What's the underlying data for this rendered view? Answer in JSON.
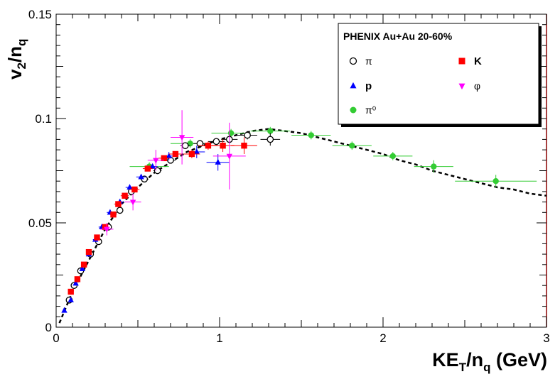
{
  "chart_data": {
    "type": "scatter",
    "title": "",
    "xlabel": {
      "main": "KE",
      "sub1": "T",
      "mid": "/n",
      "sub2": "q",
      "tail": " (GeV)"
    },
    "ylabel": {
      "main": "v",
      "sub1": "2",
      "mid": "/n",
      "sub2": "q"
    },
    "xlim": [
      0,
      3
    ],
    "ylim": [
      0,
      0.15
    ],
    "x_ticks": [
      {
        "value": 0,
        "label": "0"
      },
      {
        "value": 1,
        "label": "1"
      },
      {
        "value": 2,
        "label": "2"
      },
      {
        "value": 3,
        "label": "3"
      }
    ],
    "y_ticks": [
      {
        "value": 0,
        "label": "0"
      },
      {
        "value": 0.05,
        "label": "0.05"
      },
      {
        "value": 0.1,
        "label": "0.1"
      },
      {
        "value": 0.15,
        "label": "0.15"
      }
    ],
    "legend": {
      "header": "PHENIX Au+Au 20-60%",
      "placement": "top-right"
    },
    "series": [
      {
        "name": "π",
        "marker": "circle-open",
        "color": "#000000",
        "points": [
          {
            "x": 0.08,
            "y": 0.013,
            "xerr": 0.01,
            "yerr": 0.001
          },
          {
            "x": 0.11,
            "y": 0.02,
            "xerr": 0.01,
            "yerr": 0.001
          },
          {
            "x": 0.15,
            "y": 0.027,
            "xerr": 0.012,
            "yerr": 0.001
          },
          {
            "x": 0.21,
            "y": 0.035,
            "xerr": 0.015,
            "yerr": 0.001
          },
          {
            "x": 0.26,
            "y": 0.041,
            "xerr": 0.015,
            "yerr": 0.001
          },
          {
            "x": 0.32,
            "y": 0.048,
            "xerr": 0.02,
            "yerr": 0.001
          },
          {
            "x": 0.39,
            "y": 0.056,
            "xerr": 0.02,
            "yerr": 0.001
          },
          {
            "x": 0.46,
            "y": 0.065,
            "xerr": 0.02,
            "yerr": 0.001
          },
          {
            "x": 0.54,
            "y": 0.071,
            "xerr": 0.025,
            "yerr": 0.001
          },
          {
            "x": 0.62,
            "y": 0.075,
            "xerr": 0.025,
            "yerr": 0.001
          },
          {
            "x": 0.7,
            "y": 0.08,
            "xerr": 0.03,
            "yerr": 0.001
          },
          {
            "x": 0.79,
            "y": 0.087,
            "xerr": 0.03,
            "yerr": 0.001
          },
          {
            "x": 0.88,
            "y": 0.088,
            "xerr": 0.04,
            "yerr": 0.001
          },
          {
            "x": 0.98,
            "y": 0.089,
            "xerr": 0.05,
            "yerr": 0.001
          },
          {
            "x": 1.06,
            "y": 0.09,
            "xerr": 0.05,
            "yerr": 0.002
          },
          {
            "x": 1.17,
            "y": 0.092,
            "xerr": 0.06,
            "yerr": 0.002
          },
          {
            "x": 1.31,
            "y": 0.09,
            "xerr": 0.06,
            "yerr": 0.003
          }
        ]
      },
      {
        "name": "K",
        "marker": "square",
        "color": "#ff0000",
        "points": [
          {
            "x": 0.09,
            "y": 0.017,
            "xerr": 0.01,
            "yerr": 0.001
          },
          {
            "x": 0.13,
            "y": 0.023,
            "xerr": 0.012,
            "yerr": 0.001
          },
          {
            "x": 0.17,
            "y": 0.03,
            "xerr": 0.012,
            "yerr": 0.001
          },
          {
            "x": 0.2,
            "y": 0.036,
            "xerr": 0.015,
            "yerr": 0.001
          },
          {
            "x": 0.25,
            "y": 0.043,
            "xerr": 0.015,
            "yerr": 0.001
          },
          {
            "x": 0.3,
            "y": 0.048,
            "xerr": 0.02,
            "yerr": 0.001
          },
          {
            "x": 0.35,
            "y": 0.054,
            "xerr": 0.02,
            "yerr": 0.001
          },
          {
            "x": 0.38,
            "y": 0.059,
            "xerr": 0.025,
            "yerr": 0.001
          },
          {
            "x": 0.42,
            "y": 0.063,
            "xerr": 0.025,
            "yerr": 0.001
          },
          {
            "x": 0.48,
            "y": 0.066,
            "xerr": 0.03,
            "yerr": 0.001
          },
          {
            "x": 0.56,
            "y": 0.076,
            "xerr": 0.03,
            "yerr": 0.001
          },
          {
            "x": 0.66,
            "y": 0.081,
            "xerr": 0.035,
            "yerr": 0.001
          },
          {
            "x": 0.73,
            "y": 0.083,
            "xerr": 0.04,
            "yerr": 0.001
          },
          {
            "x": 0.83,
            "y": 0.083,
            "xerr": 0.05,
            "yerr": 0.002
          },
          {
            "x": 0.93,
            "y": 0.087,
            "xerr": 0.06,
            "yerr": 0.002
          },
          {
            "x": 1.02,
            "y": 0.087,
            "xerr": 0.07,
            "yerr": 0.003
          },
          {
            "x": 1.15,
            "y": 0.087,
            "xerr": 0.08,
            "yerr": 0.004
          }
        ]
      },
      {
        "name": "p",
        "marker": "triangle-up",
        "color": "#0000ff",
        "points": [
          {
            "x": 0.05,
            "y": 0.008,
            "xerr": 0.008,
            "yerr": 0.001
          },
          {
            "x": 0.09,
            "y": 0.013,
            "xerr": 0.01,
            "yerr": 0.001
          },
          {
            "x": 0.12,
            "y": 0.021,
            "xerr": 0.01,
            "yerr": 0.001
          },
          {
            "x": 0.16,
            "y": 0.028,
            "xerr": 0.012,
            "yerr": 0.001
          },
          {
            "x": 0.2,
            "y": 0.035,
            "xerr": 0.015,
            "yerr": 0.001
          },
          {
            "x": 0.24,
            "y": 0.042,
            "xerr": 0.015,
            "yerr": 0.001
          },
          {
            "x": 0.28,
            "y": 0.048,
            "xerr": 0.02,
            "yerr": 0.001
          },
          {
            "x": 0.33,
            "y": 0.055,
            "xerr": 0.02,
            "yerr": 0.001
          },
          {
            "x": 0.39,
            "y": 0.06,
            "xerr": 0.025,
            "yerr": 0.001
          },
          {
            "x": 0.45,
            "y": 0.067,
            "xerr": 0.025,
            "yerr": 0.001
          },
          {
            "x": 0.52,
            "y": 0.072,
            "xerr": 0.03,
            "yerr": 0.001
          },
          {
            "x": 0.59,
            "y": 0.077,
            "xerr": 0.03,
            "yerr": 0.001
          },
          {
            "x": 0.69,
            "y": 0.082,
            "xerr": 0.035,
            "yerr": 0.002
          },
          {
            "x": 0.86,
            "y": 0.084,
            "xerr": 0.05,
            "yerr": 0.003
          },
          {
            "x": 0.99,
            "y": 0.079,
            "xerr": 0.07,
            "yerr": 0.004
          }
        ]
      },
      {
        "name": "φ",
        "marker": "triangle-down",
        "color": "#ff00ff",
        "points": [
          {
            "x": 0.31,
            "y": 0.047,
            "xerr": 0.04,
            "yerr": 0.003
          },
          {
            "x": 0.47,
            "y": 0.06,
            "xerr": 0.05,
            "yerr": 0.004
          },
          {
            "x": 0.61,
            "y": 0.08,
            "xerr": 0.05,
            "yerr": 0.005
          },
          {
            "x": 0.77,
            "y": 0.091,
            "xerr": 0.07,
            "yerr": 0.013
          },
          {
            "x": 1.06,
            "y": 0.082,
            "xerr": 0.1,
            "yerr": 0.016
          }
        ]
      },
      {
        "name": "π⁰",
        "marker": "circle",
        "color": "#33cc33",
        "points": [
          {
            "x": 0.57,
            "y": 0.077,
            "xerr": 0.12,
            "yerr": 0.002
          },
          {
            "x": 0.82,
            "y": 0.088,
            "xerr": 0.12,
            "yerr": 0.002
          },
          {
            "x": 1.07,
            "y": 0.093,
            "xerr": 0.12,
            "yerr": 0.002
          },
          {
            "x": 1.31,
            "y": 0.094,
            "xerr": 0.12,
            "yerr": 0.002
          },
          {
            "x": 1.56,
            "y": 0.092,
            "xerr": 0.12,
            "yerr": 0.002
          },
          {
            "x": 1.81,
            "y": 0.087,
            "xerr": 0.12,
            "yerr": 0.002
          },
          {
            "x": 2.06,
            "y": 0.082,
            "xerr": 0.12,
            "yerr": 0.002
          },
          {
            "x": 2.31,
            "y": 0.077,
            "xerr": 0.12,
            "yerr": 0.003
          },
          {
            "x": 2.69,
            "y": 0.07,
            "xerr": 0.25,
            "yerr": 0.003
          }
        ]
      }
    ],
    "fit_curve": {
      "style": "dashed",
      "color": "#000000",
      "points": [
        [
          0.02,
          0.002
        ],
        [
          0.1,
          0.017
        ],
        [
          0.2,
          0.032
        ],
        [
          0.3,
          0.047
        ],
        [
          0.4,
          0.059
        ],
        [
          0.5,
          0.067
        ],
        [
          0.6,
          0.074
        ],
        [
          0.7,
          0.079
        ],
        [
          0.8,
          0.084
        ],
        [
          0.9,
          0.087
        ],
        [
          1.0,
          0.09
        ],
        [
          1.1,
          0.092
        ],
        [
          1.2,
          0.094
        ],
        [
          1.3,
          0.095
        ],
        [
          1.4,
          0.094
        ],
        [
          1.5,
          0.093
        ],
        [
          1.6,
          0.091
        ],
        [
          1.7,
          0.089
        ],
        [
          1.8,
          0.087
        ],
        [
          1.9,
          0.085
        ],
        [
          2.0,
          0.083
        ],
        [
          2.1,
          0.08
        ],
        [
          2.2,
          0.078
        ],
        [
          2.3,
          0.075
        ],
        [
          2.4,
          0.073
        ],
        [
          2.5,
          0.071
        ],
        [
          2.6,
          0.069
        ],
        [
          2.7,
          0.067
        ],
        [
          2.8,
          0.066
        ],
        [
          2.9,
          0.064
        ],
        [
          3.0,
          0.063
        ]
      ]
    }
  }
}
